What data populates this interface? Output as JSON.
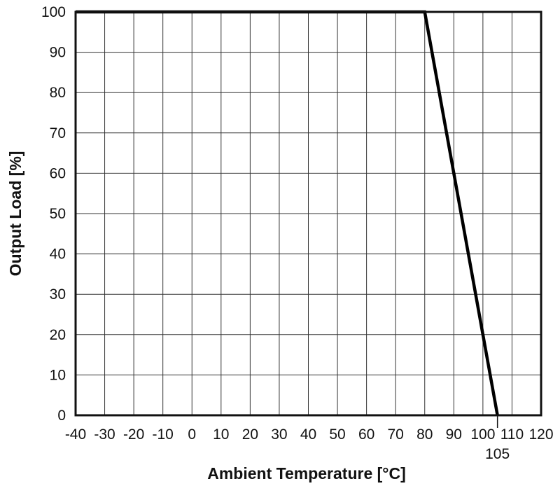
{
  "chart_data": {
    "type": "line",
    "title": "",
    "xlabel": "Ambient Temperature [°C]",
    "ylabel": "Output Load [%]",
    "xlim": [
      -40,
      120
    ],
    "ylim": [
      0,
      100
    ],
    "x_ticks": [
      -40,
      -30,
      -20,
      -10,
      0,
      10,
      20,
      30,
      40,
      50,
      60,
      70,
      80,
      90,
      100,
      110,
      120
    ],
    "y_ticks": [
      0,
      10,
      20,
      30,
      40,
      50,
      60,
      70,
      80,
      90,
      100
    ],
    "extra_x_ticks": [
      105
    ],
    "grid": true,
    "legend": "none",
    "series": [
      {
        "x": [
          -40,
          80,
          105
        ],
        "y": [
          100,
          100,
          0
        ],
        "color": "#000000"
      }
    ]
  }
}
